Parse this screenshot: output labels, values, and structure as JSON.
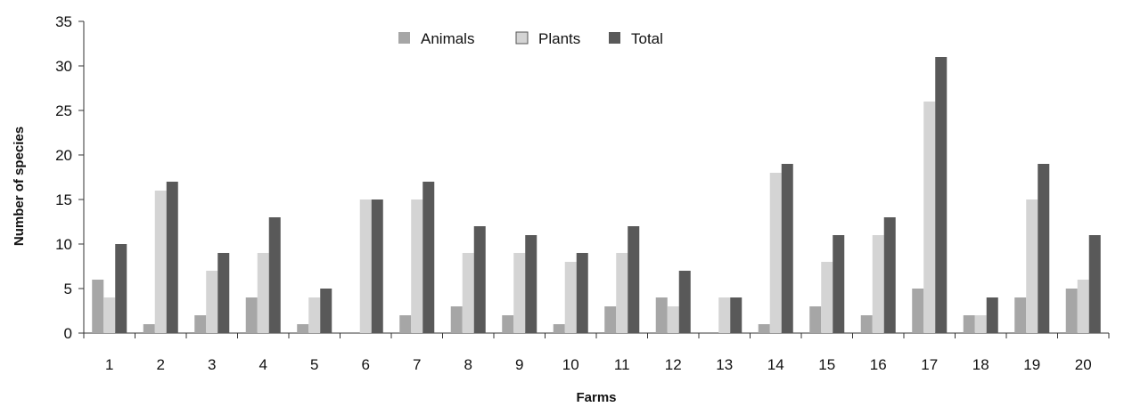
{
  "chart_data": {
    "type": "bar",
    "title": "",
    "xlabel": "Farms",
    "ylabel": "Number of species",
    "ylim": [
      0,
      35
    ],
    "yticks": [
      0,
      5,
      10,
      15,
      20,
      25,
      30,
      35
    ],
    "grid": false,
    "legend_position": "top-center",
    "categories": [
      "1",
      "2",
      "3",
      "4",
      "5",
      "6",
      "7",
      "8",
      "9",
      "10",
      "11",
      "12",
      "13",
      "14",
      "15",
      "16",
      "17",
      "18",
      "19",
      "20"
    ],
    "series": [
      {
        "name": "Animals",
        "color": "#a6a6a6",
        "values": [
          6,
          1,
          2,
          4,
          1,
          0,
          2,
          3,
          2,
          1,
          3,
          4,
          0,
          1,
          3,
          2,
          5,
          2,
          4,
          5
        ]
      },
      {
        "name": "Plants",
        "color": "#d4d4d4",
        "values": [
          4,
          16,
          7,
          9,
          4,
          15,
          15,
          9,
          9,
          8,
          9,
          3,
          4,
          18,
          8,
          11,
          26,
          2,
          15,
          6
        ]
      },
      {
        "name": "Total",
        "color": "#595959",
        "values": [
          10,
          17,
          9,
          13,
          5,
          15,
          17,
          12,
          11,
          9,
          12,
          7,
          4,
          19,
          11,
          13,
          31,
          4,
          19,
          11
        ]
      }
    ]
  }
}
